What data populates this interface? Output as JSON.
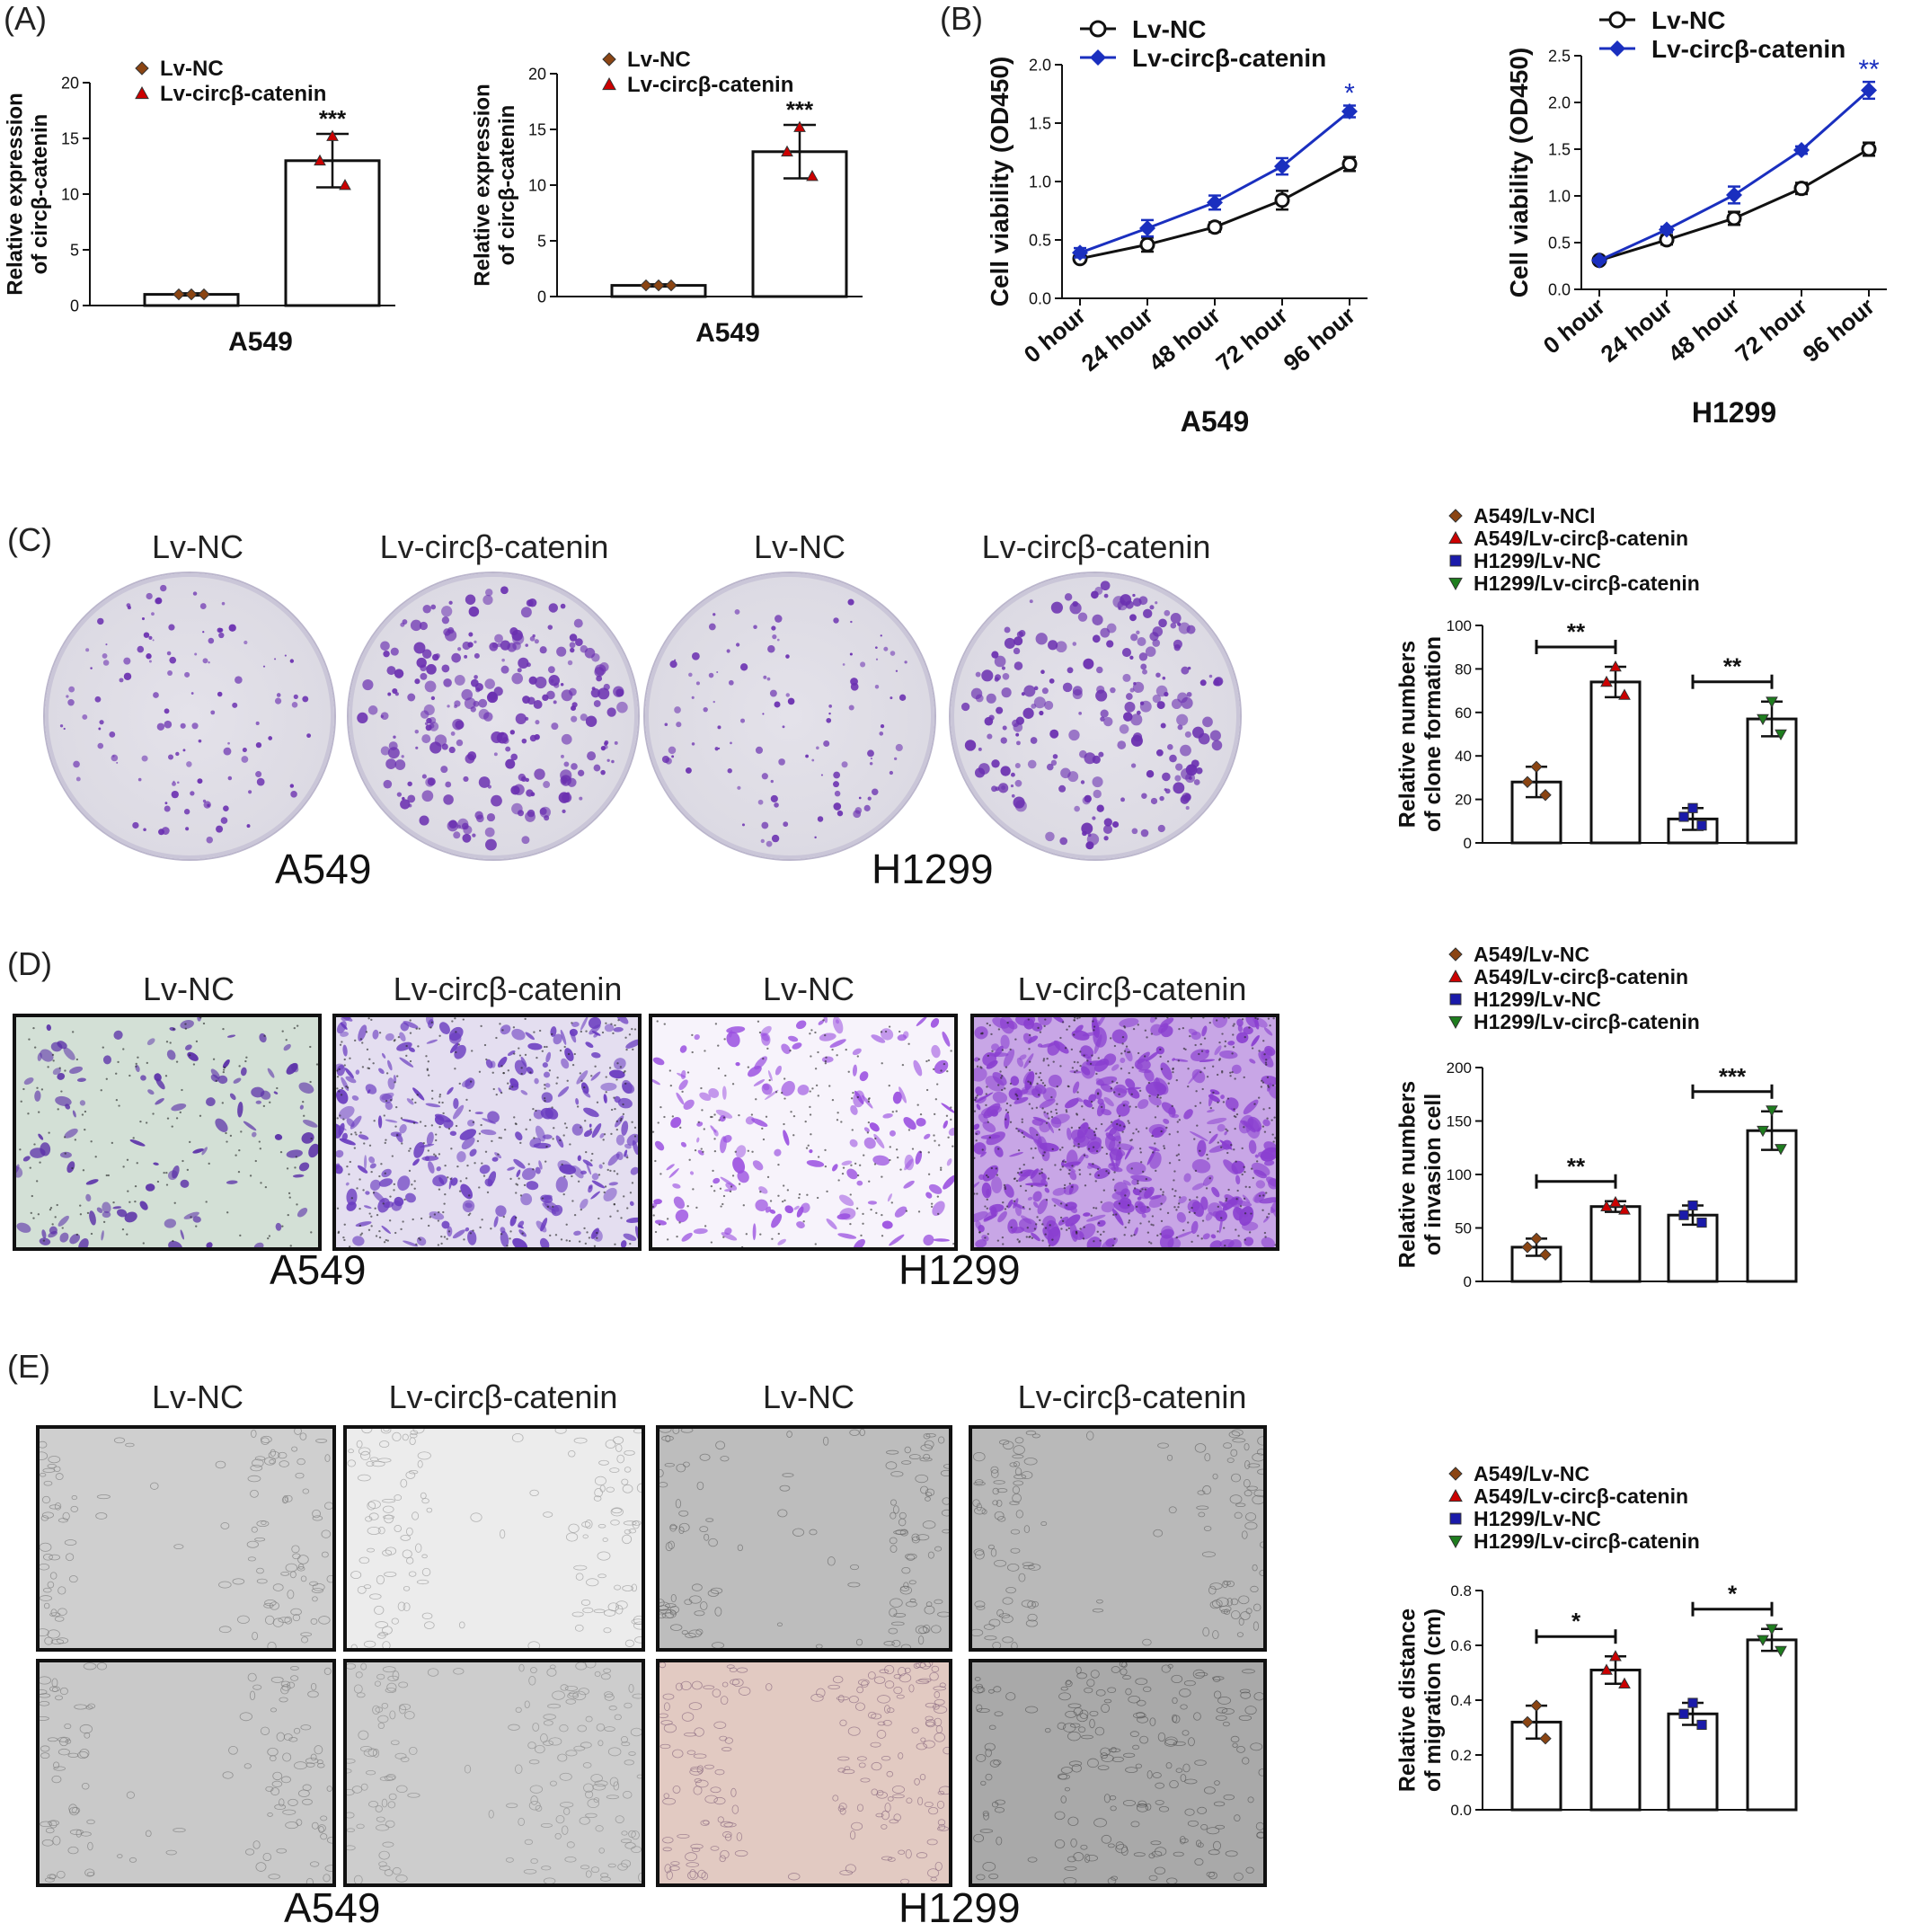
{
  "panels": {
    "A": "(A)",
    "B": "(B)",
    "C": "(C)",
    "D": "(D)",
    "E": "(E)"
  },
  "colors": {
    "lvnc": "#8B4513",
    "circ": "#cc0000",
    "h1299nc": "#1a1aaa",
    "h1299circ": "#1e7d1e",
    "lineblue": "#1a2fbf",
    "dye": "#6a2fb0"
  },
  "panelC": {
    "col_labels": [
      "Lv-NC",
      "Lv-circβ-catenin",
      "Lv-NC",
      "Lv-circβ-catenin"
    ],
    "cell_labels": [
      "A549",
      "H1299"
    ]
  },
  "panelD": {
    "col_labels": [
      "Lv-NC",
      "Lv-circβ-catenin",
      "Lv-NC",
      "Lv-circβ-catenin"
    ],
    "cell_labels": [
      "A549",
      "H1299"
    ]
  },
  "panelE": {
    "col_labels": [
      "Lv-NC",
      "Lv-circβ-catenin",
      "Lv-NC",
      "Lv-circβ-catenin"
    ],
    "cell_labels": [
      "A549",
      "H1299"
    ]
  },
  "chart_data": [
    {
      "id": "A1",
      "type": "bar",
      "legend": [
        "Lv-NC",
        "Lv-circβ-catenin"
      ],
      "categories": [
        "Lv-NC",
        "Lv-circβ-catenin"
      ],
      "values": [
        1.0,
        13.0
      ],
      "errors": [
        0.1,
        2.4
      ],
      "points": [
        [
          1.0,
          1.0,
          1.0
        ],
        [
          13.0,
          15.2,
          10.8
        ]
      ],
      "xlabel": "A549",
      "ylabel": [
        "Relative expression",
        "of circβ-catenin"
      ],
      "ylim": [
        0,
        20
      ],
      "yticks": [
        0,
        5,
        10,
        15,
        20
      ],
      "annotations": [
        "***"
      ]
    },
    {
      "id": "A2",
      "type": "bar",
      "legend": [
        "Lv-NC",
        "Lv-circβ-catenin"
      ],
      "categories": [
        "Lv-NC",
        "Lv-circβ-catenin"
      ],
      "values": [
        1.0,
        13.0
      ],
      "errors": [
        0.1,
        2.4
      ],
      "points": [
        [
          1.0,
          1.0,
          1.0
        ],
        [
          13.0,
          15.2,
          10.8
        ]
      ],
      "xlabel": "A549",
      "ylabel": [
        "Relative expression",
        "of circβ-catenin"
      ],
      "ylim": [
        0,
        20
      ],
      "yticks": [
        0,
        5,
        10,
        15,
        20
      ],
      "annotations": [
        "***"
      ]
    },
    {
      "id": "B1",
      "type": "line",
      "x": [
        "0 hour",
        "24 hour",
        "48 hour",
        "72 hour",
        "96 hour"
      ],
      "series": [
        {
          "name": "Lv-NC",
          "values": [
            0.34,
            0.46,
            0.61,
            0.84,
            1.15
          ],
          "errors": [
            0.03,
            0.06,
            0.04,
            0.08,
            0.06
          ]
        },
        {
          "name": "Lv-circβ-catenin",
          "values": [
            0.39,
            0.6,
            0.82,
            1.13,
            1.6
          ],
          "errors": [
            0.04,
            0.07,
            0.06,
            0.07,
            0.05
          ]
        }
      ],
      "xlabel": "A549",
      "ylabel": "Cell viability (OD450)",
      "ylim": [
        0,
        2.0
      ],
      "yticks": [
        0.0,
        0.5,
        1.0,
        1.5,
        2.0
      ],
      "annotations": [
        "*"
      ]
    },
    {
      "id": "B2",
      "type": "line",
      "x": [
        "0 hour",
        "24 hour",
        "48 hour",
        "72 hour",
        "96 hour"
      ],
      "series": [
        {
          "name": "Lv-NC",
          "values": [
            0.31,
            0.53,
            0.76,
            1.08,
            1.5
          ],
          "errors": [
            0.02,
            0.05,
            0.07,
            0.06,
            0.07
          ]
        },
        {
          "name": "Lv-circβ-catenin",
          "values": [
            0.31,
            0.64,
            1.01,
            1.49,
            2.13
          ],
          "errors": [
            0.02,
            0.03,
            0.09,
            0.04,
            0.09
          ]
        }
      ],
      "xlabel": "H1299",
      "ylabel": "Cell viability (OD450)",
      "ylim": [
        0,
        2.5
      ],
      "yticks": [
        0.0,
        0.5,
        1.0,
        1.5,
        2.0,
        2.5
      ],
      "annotations": [
        "**"
      ]
    },
    {
      "id": "C",
      "type": "bar",
      "legend": [
        "A549/Lv-NCl",
        "A549/Lv-circβ-catenin",
        "H1299/Lv-NC",
        "H1299/Lv-circβ-catenin"
      ],
      "categories": [
        "A549/Lv-NCl",
        "A549/Lv-circβ-catenin",
        "H1299/Lv-NC",
        "H1299/Lv-circβ-catenin"
      ],
      "values": [
        28,
        74,
        11,
        57
      ],
      "errors": [
        7,
        7,
        5,
        8
      ],
      "points": [
        [
          35,
          28,
          22
        ],
        [
          81,
          74,
          68
        ],
        [
          16,
          12,
          8
        ],
        [
          65,
          57,
          50
        ]
      ],
      "ylabel": [
        "Relative numbers",
        "of clone formation"
      ],
      "ylim": [
        0,
        100
      ],
      "yticks": [
        0,
        20,
        40,
        60,
        80,
        100
      ],
      "annotations": [
        "**",
        "**"
      ]
    },
    {
      "id": "D",
      "type": "bar",
      "legend": [
        "A549/Lv-NC",
        "A549/Lv-circβ-catenin",
        "H1299/Lv-NC",
        "H1299/Lv-circβ-catenin"
      ],
      "categories": [
        "A549/Lv-NC",
        "A549/Lv-circβ-catenin",
        "H1299/Lv-NC",
        "H1299/Lv-circβ-catenin"
      ],
      "values": [
        32,
        70,
        62,
        141
      ],
      "errors": [
        8,
        5,
        9,
        18
      ],
      "points": [
        [
          40,
          32,
          25
        ],
        [
          74,
          70,
          67
        ],
        [
          71,
          62,
          55
        ],
        [
          160,
          141,
          124
        ]
      ],
      "ylabel": [
        "Relative numbers",
        "of invasion cell"
      ],
      "ylim": [
        0,
        200
      ],
      "yticks": [
        0,
        50,
        100,
        150,
        200
      ],
      "annotations": [
        "**",
        "***"
      ]
    },
    {
      "id": "E",
      "type": "bar",
      "legend": [
        "A549/Lv-NC",
        "A549/Lv-circβ-catenin",
        "H1299/Lv-NC",
        "H1299/Lv-circβ-catenin"
      ],
      "categories": [
        "A549/Lv-NC",
        "A549/Lv-circβ-catenin",
        "H1299/Lv-NC",
        "H1299/Lv-circβ-catenin"
      ],
      "values": [
        0.32,
        0.51,
        0.35,
        0.62
      ],
      "errors": [
        0.06,
        0.05,
        0.04,
        0.04
      ],
      "points": [
        [
          0.38,
          0.32,
          0.26
        ],
        [
          0.56,
          0.51,
          0.46
        ],
        [
          0.39,
          0.35,
          0.31
        ],
        [
          0.66,
          0.62,
          0.58
        ]
      ],
      "ylabel": [
        "Relative distance",
        "of migration (cm)"
      ],
      "ylim": [
        0,
        0.8
      ],
      "yticks": [
        0.0,
        0.2,
        0.4,
        0.6,
        0.8
      ],
      "annotations": [
        "*",
        "*"
      ]
    }
  ]
}
